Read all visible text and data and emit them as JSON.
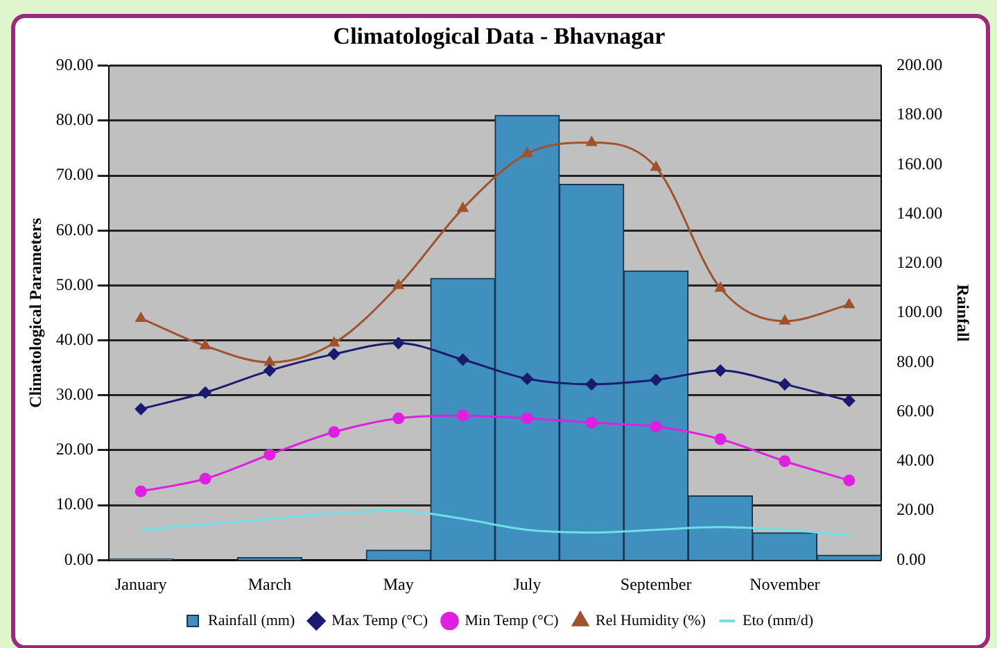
{
  "chart_data": {
    "type": "bar",
    "title": "Climatological Data - Bhavnagar",
    "ylabel": "Climatological Parameters",
    "y2label": "Rainfall",
    "categories": [
      "January",
      null,
      "March",
      null,
      "May",
      null,
      "July",
      null,
      "September",
      null,
      "November",
      null
    ],
    "series": [
      {
        "name": "Rainfall (mm)",
        "axis": "y2",
        "color": "#3f8fbf",
        "values": [
          0.5,
          null,
          1,
          null,
          4,
          114,
          180,
          152,
          117,
          26,
          11,
          2
        ]
      },
      {
        "name": "Max Temp (°C)",
        "type": "line",
        "marker": "diamond",
        "color": "#1a1a70",
        "values": [
          27.5,
          30.5,
          34.5,
          37.5,
          39.5,
          36.5,
          33,
          32,
          32.8,
          34.5,
          32,
          29
        ]
      },
      {
        "name": "Min Temp (°C)",
        "type": "line",
        "marker": "circle",
        "color": "#e020e0",
        "values": [
          12.5,
          14.8,
          19.2,
          23.3,
          25.8,
          26.3,
          25.8,
          25,
          24.3,
          22,
          18,
          14.5
        ]
      },
      {
        "name": "Rel Humidity (%)",
        "type": "line",
        "marker": "triangle",
        "color": "#a0522d",
        "values": [
          44,
          39,
          36,
          39.5,
          50,
          64,
          74,
          76,
          71.5,
          49.5,
          43.5,
          46.5
        ]
      },
      {
        "name": "Eto (mm/d)",
        "type": "line",
        "marker": "none",
        "color": "#70e0e8",
        "values": [
          5.5,
          6.5,
          7.5,
          8.5,
          9,
          7.5,
          5.5,
          5,
          5.5,
          6,
          5.5,
          4.5
        ]
      }
    ],
    "ylim": [
      0,
      90
    ],
    "yticks": [
      {
        "value": 0,
        "label": "0.00"
      },
      {
        "value": 10,
        "label": "10.00"
      },
      {
        "value": 20,
        "label": "20.00"
      },
      {
        "value": 30,
        "label": "30.00"
      },
      {
        "value": 40,
        "label": "40.00"
      },
      {
        "value": 50,
        "label": "50.00"
      },
      {
        "value": 60,
        "label": "60.00"
      },
      {
        "value": 70,
        "label": "70.00"
      },
      {
        "value": 80,
        "label": "80.00"
      },
      {
        "value": 90,
        "label": "90.00"
      }
    ],
    "y2lim": [
      0,
      200
    ],
    "y2ticks": [
      {
        "value": 0,
        "label": "0.00"
      },
      {
        "value": 20,
        "label": "20.00"
      },
      {
        "value": 40,
        "label": "40.00"
      },
      {
        "value": 60,
        "label": "60.00"
      },
      {
        "value": 80,
        "label": "80.00"
      },
      {
        "value": 100,
        "label": "100.00"
      },
      {
        "value": 120,
        "label": "120.00"
      },
      {
        "value": 140,
        "label": "140.00"
      },
      {
        "value": 160,
        "label": "160.00"
      },
      {
        "value": 180,
        "label": "180.00"
      },
      {
        "value": 200,
        "label": "200.00"
      }
    ],
    "grid": "y",
    "legend": "bottom"
  }
}
